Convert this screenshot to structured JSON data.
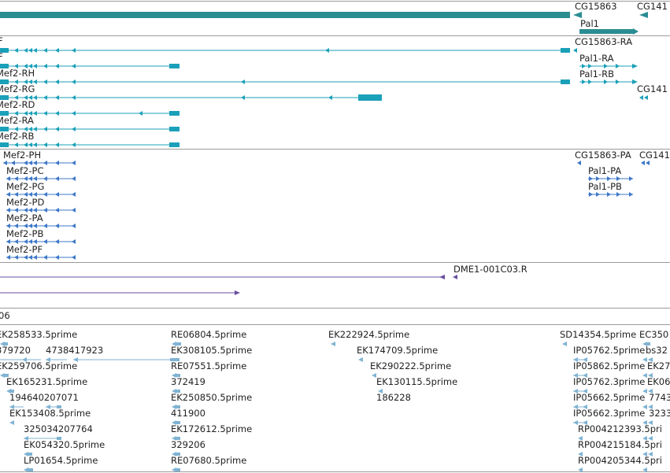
{
  "colors": {
    "gene": "#2a8d92",
    "transcript": "#1aa0b8",
    "protein": "#3d78c8",
    "cdna": "#6a4fa0",
    "est": "#7fb3d3",
    "divider": "#9a9a9a",
    "label": "#222222"
  },
  "genes": {
    "labels": [
      "CG15863",
      "CG141",
      "Pal1"
    ]
  },
  "transcripts": {
    "labels": [
      "F",
      "F",
      "Mef2-RH",
      "Mef2-RG",
      "Mef2-RD",
      "Mef2-RA",
      "Mef2-RB",
      "CG15863-RA",
      "Pal1-RA",
      "Pal1-RB",
      "CG141"
    ]
  },
  "proteins": {
    "labels": [
      "Mef2-PH",
      "Mef2-PC",
      "Mef2-PG",
      "Mef2-PD",
      "Mef2-PA",
      "Mef2-PB",
      "Mef2-PF",
      "CG15863-PA",
      "CG141",
      "Pal1-PA",
      "Pal1-PB"
    ]
  },
  "cdna": {
    "labels": [
      "DME1-001C03.R"
    ]
  },
  "misc": {
    "labels": [
      "06"
    ]
  },
  "ests": {
    "labels": [
      "EK258533.5prime",
      "RE06804.5prime",
      "EK222924.5prime",
      "SD14354.5prime",
      "EC350",
      "379720",
      "4738417923",
      "EK308105.5prime",
      "EK174709.5prime",
      "IP05762.5prime",
      "bs32",
      "EK259706.5prime",
      "RE07551.5prime",
      "EK290222.5prime",
      "IP05862.5prime",
      "EK27",
      "EK165231.5prime",
      "372419",
      "EK130115.5prime",
      "IP05762.3prime",
      "EK06",
      "194640207071",
      "EK250850.5prime",
      "186228",
      "IP05662.5prime",
      "7743",
      "EK153408.5prime",
      "411900",
      "IP05662.3prime",
      "3233",
      "325034207764",
      "EK172612.5prime",
      "RP004212393.5pri",
      "EK054320.5prime",
      "329206",
      "RP004215184.5pri",
      "LP01654.5prime",
      "RE07680.5prime",
      "RP004205344.5pri"
    ]
  }
}
